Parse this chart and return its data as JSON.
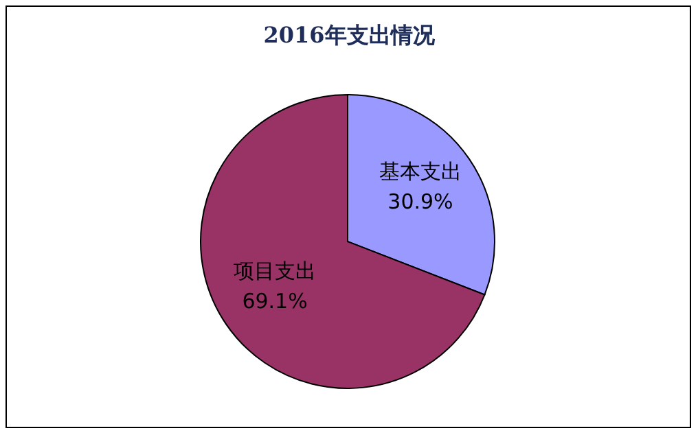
{
  "chart_data": {
    "type": "pie",
    "title": "2016年支出情况",
    "categories": [
      "基本支出",
      "项目支出"
    ],
    "values": [
      30.9,
      69.1
    ],
    "colors": [
      "#9999ff",
      "#993366"
    ],
    "value_labels": [
      "30.9%",
      "69.1%"
    ]
  }
}
